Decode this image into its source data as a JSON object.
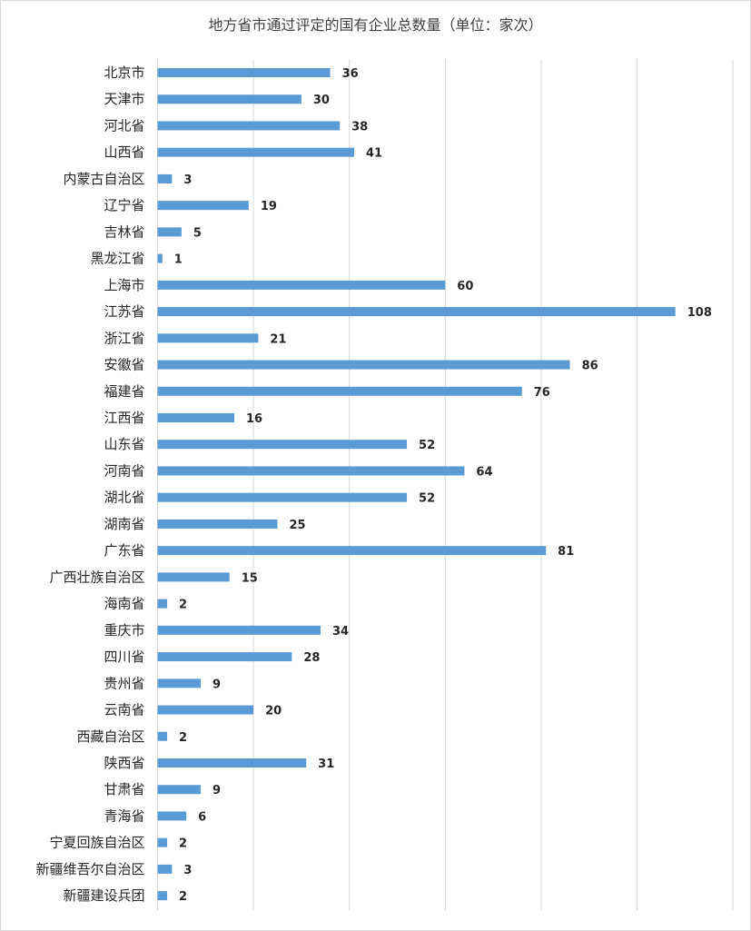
{
  "chart_data": {
    "type": "bar",
    "orientation": "horizontal",
    "title": "地方省市通过评定的国有企业总数量（单位：家次）",
    "xlim": [
      0,
      120
    ],
    "grid": true,
    "bar_color": "#5b9bd5",
    "categories": [
      "北京市",
      "天津市",
      "河北省",
      "山西省",
      "内蒙古自治区",
      "辽宁省",
      "吉林省",
      "黑龙江省",
      "上海市",
      "江苏省",
      "浙江省",
      "安徽省",
      "福建省",
      "江西省",
      "山东省",
      "河南省",
      "湖北省",
      "湖南省",
      "广东省",
      "广西壮族自治区",
      "海南省",
      "重庆市",
      "四川省",
      "贵州省",
      "云南省",
      "西藏自治区",
      "陕西省",
      "甘肃省",
      "青海省",
      "宁夏回族自治区",
      "新疆维吾尔自治区",
      "新疆建设兵团"
    ],
    "values": [
      36,
      30,
      38,
      41,
      3,
      19,
      5,
      1,
      60,
      108,
      21,
      86,
      76,
      16,
      52,
      64,
      52,
      25,
      81,
      15,
      2,
      34,
      28,
      9,
      20,
      2,
      31,
      9,
      6,
      2,
      3,
      2
    ]
  }
}
